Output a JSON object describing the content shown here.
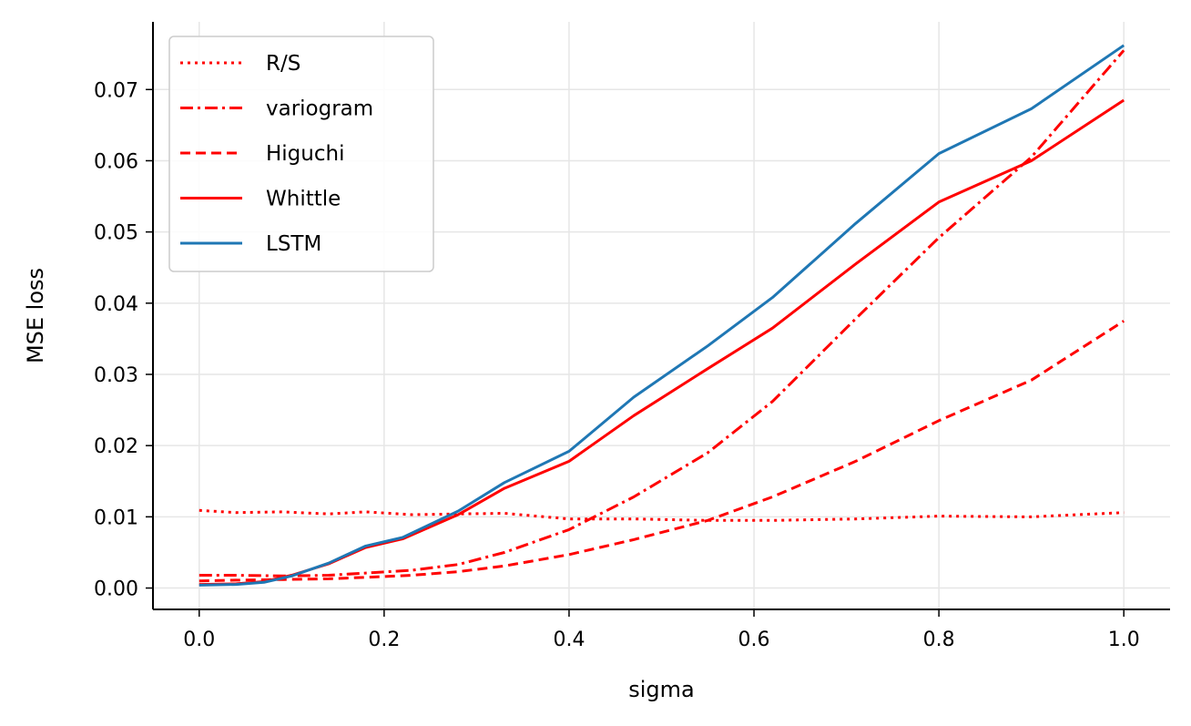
{
  "chart_data": {
    "type": "line",
    "title": "",
    "xlabel": "sigma",
    "ylabel": "MSE loss",
    "xlim": [
      -0.05,
      1.05
    ],
    "ylim": [
      -0.003,
      0.0795
    ],
    "x_ticks": [
      "0.0",
      "0.2",
      "0.4",
      "0.6",
      "0.8",
      "1.0"
    ],
    "x_tick_values": [
      0.0,
      0.2,
      0.4,
      0.6,
      0.8,
      1.0
    ],
    "y_ticks": [
      "0.00",
      "0.01",
      "0.02",
      "0.03",
      "0.04",
      "0.05",
      "0.06",
      "0.07"
    ],
    "y_tick_values": [
      0.0,
      0.01,
      0.02,
      0.03,
      0.04,
      0.05,
      0.06,
      0.07
    ],
    "grid": true,
    "legend_position": "top-left",
    "series": [
      {
        "name": "R/S",
        "color": "#ff0000",
        "style": "dotted",
        "points": [
          [
            0.0,
            0.0109
          ],
          [
            0.04,
            0.0106
          ],
          [
            0.09,
            0.0107
          ],
          [
            0.14,
            0.0104
          ],
          [
            0.18,
            0.0107
          ],
          [
            0.23,
            0.0103
          ],
          [
            0.28,
            0.0104
          ],
          [
            0.33,
            0.0105
          ],
          [
            0.4,
            0.0097
          ],
          [
            0.47,
            0.0097
          ],
          [
            0.55,
            0.0095
          ],
          [
            0.62,
            0.0095
          ],
          [
            0.71,
            0.0097
          ],
          [
            0.8,
            0.0101
          ],
          [
            0.9,
            0.01
          ],
          [
            1.0,
            0.0106
          ]
        ]
      },
      {
        "name": "variogram",
        "color": "#ff0000",
        "style": "dashdot",
        "points": [
          [
            0.0,
            0.0018
          ],
          [
            0.04,
            0.0018
          ],
          [
            0.09,
            0.0017
          ],
          [
            0.14,
            0.0018
          ],
          [
            0.18,
            0.0021
          ],
          [
            0.23,
            0.0025
          ],
          [
            0.28,
            0.0033
          ],
          [
            0.33,
            0.005
          ],
          [
            0.4,
            0.0082
          ],
          [
            0.47,
            0.0128
          ],
          [
            0.55,
            0.019
          ],
          [
            0.62,
            0.0262
          ],
          [
            0.71,
            0.0378
          ],
          [
            0.8,
            0.0492
          ],
          [
            0.9,
            0.0605
          ],
          [
            1.0,
            0.0755
          ]
        ]
      },
      {
        "name": "Higuchi",
        "color": "#ff0000",
        "style": "dashed",
        "points": [
          [
            0.0,
            0.001
          ],
          [
            0.04,
            0.0011
          ],
          [
            0.09,
            0.0012
          ],
          [
            0.14,
            0.0013
          ],
          [
            0.18,
            0.0015
          ],
          [
            0.23,
            0.0018
          ],
          [
            0.28,
            0.0023
          ],
          [
            0.33,
            0.0031
          ],
          [
            0.4,
            0.0047
          ],
          [
            0.47,
            0.0068
          ],
          [
            0.55,
            0.0095
          ],
          [
            0.62,
            0.0128
          ],
          [
            0.71,
            0.0178
          ],
          [
            0.8,
            0.0235
          ],
          [
            0.9,
            0.0292
          ],
          [
            1.0,
            0.0375
          ]
        ]
      },
      {
        "name": "Whittle",
        "color": "#ff0000",
        "style": "solid",
        "points": [
          [
            0.0,
            0.0005
          ],
          [
            0.04,
            0.0006
          ],
          [
            0.07,
            0.0009
          ],
          [
            0.1,
            0.0018
          ],
          [
            0.14,
            0.0034
          ],
          [
            0.18,
            0.0057
          ],
          [
            0.22,
            0.0069
          ],
          [
            0.28,
            0.0103
          ],
          [
            0.33,
            0.014
          ],
          [
            0.4,
            0.0178
          ],
          [
            0.47,
            0.0242
          ],
          [
            0.55,
            0.0308
          ],
          [
            0.62,
            0.0365
          ],
          [
            0.71,
            0.0455
          ],
          [
            0.8,
            0.0542
          ],
          [
            0.9,
            0.06
          ],
          [
            1.0,
            0.0685
          ]
        ]
      },
      {
        "name": "LSTM",
        "color": "#1f77b4",
        "style": "solid",
        "points": [
          [
            0.0,
            0.0004
          ],
          [
            0.04,
            0.0005
          ],
          [
            0.07,
            0.0008
          ],
          [
            0.1,
            0.0017
          ],
          [
            0.14,
            0.0035
          ],
          [
            0.18,
            0.0059
          ],
          [
            0.22,
            0.0071
          ],
          [
            0.28,
            0.0108
          ],
          [
            0.33,
            0.0148
          ],
          [
            0.4,
            0.0192
          ],
          [
            0.47,
            0.0268
          ],
          [
            0.55,
            0.034
          ],
          [
            0.62,
            0.0408
          ],
          [
            0.71,
            0.0512
          ],
          [
            0.8,
            0.061
          ],
          [
            0.9,
            0.0673
          ],
          [
            1.0,
            0.0762
          ]
        ]
      }
    ]
  }
}
